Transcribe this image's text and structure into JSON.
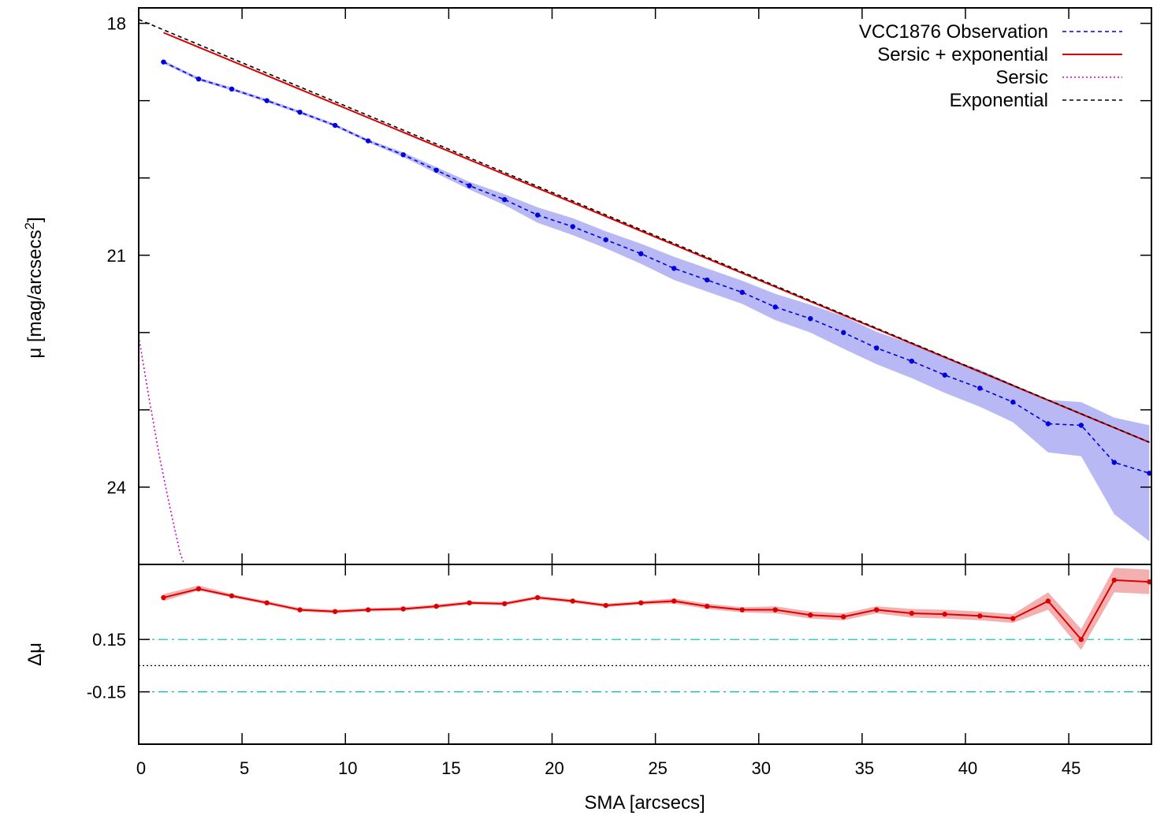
{
  "chart_data": [
    {
      "type": "line",
      "panel": "top",
      "xlim": [
        0,
        49
      ],
      "ylim": [
        25,
        17.8
      ],
      "y_inverted": true,
      "ylabel_main": "μ [mag/arcsecs",
      "ylabel_sup": "2",
      "ylabel_end": "]",
      "yticks_major": [
        18,
        21,
        24
      ],
      "yticks_major_labels": [
        "18",
        "21",
        "24"
      ],
      "yticks_minor": [
        19,
        20,
        22,
        23
      ],
      "legend_position": "top-right",
      "series": [
        {
          "name": "VCC1876 Observation",
          "color": "#0000dd",
          "style": "dashed-markers",
          "x": [
            1.2,
            2.9,
            4.5,
            6.2,
            7.8,
            9.5,
            11.1,
            12.8,
            14.4,
            16.0,
            17.7,
            19.3,
            21.0,
            22.6,
            24.3,
            25.9,
            27.5,
            29.2,
            30.8,
            32.5,
            34.1,
            35.7,
            37.4,
            39.0,
            40.7,
            42.3,
            44.0,
            45.6,
            47.2,
            48.9
          ],
          "y": [
            18.5,
            18.72,
            18.85,
            19.0,
            19.15,
            19.32,
            19.52,
            19.7,
            19.9,
            20.1,
            20.28,
            20.48,
            20.63,
            20.8,
            20.98,
            21.17,
            21.32,
            21.48,
            21.67,
            21.82,
            22.0,
            22.2,
            22.37,
            22.55,
            22.72,
            22.9,
            23.18,
            23.2,
            23.68,
            23.82
          ],
          "err_lo": [
            18.48,
            18.7,
            18.83,
            18.98,
            19.13,
            19.3,
            19.5,
            19.67,
            19.86,
            20.05,
            20.21,
            20.38,
            20.52,
            20.69,
            20.85,
            21.02,
            21.17,
            21.33,
            21.5,
            21.64,
            21.79,
            21.99,
            22.15,
            22.32,
            22.48,
            22.67,
            22.87,
            22.9,
            23.1,
            23.2
          ],
          "err_hi": [
            18.52,
            18.74,
            18.87,
            19.02,
            19.17,
            19.34,
            19.54,
            19.73,
            19.94,
            20.15,
            20.35,
            20.58,
            20.74,
            20.91,
            21.11,
            21.32,
            21.47,
            21.63,
            21.84,
            22.0,
            22.21,
            22.41,
            22.59,
            22.78,
            22.96,
            23.16,
            23.55,
            23.6,
            24.35,
            24.7
          ]
        },
        {
          "name": "Sersic + exponential",
          "color": "#dd0000",
          "style": "solid",
          "x": [
            1.2,
            48.9
          ],
          "y": [
            18.12,
            23.42
          ]
        },
        {
          "name": "Sersic",
          "color": "#cc00cc",
          "style": "dotted",
          "x": [
            0,
            0.5,
            1.0,
            1.5,
            2.0,
            2.2
          ],
          "y": [
            22.05,
            22.85,
            23.6,
            24.25,
            24.85,
            25.0
          ]
        },
        {
          "name": "Exponential",
          "color": "#000000",
          "style": "dashed",
          "x": [
            0,
            48.9
          ],
          "y": [
            17.95,
            23.42
          ]
        }
      ]
    },
    {
      "type": "line",
      "panel": "bottom",
      "xlim": [
        0,
        49
      ],
      "ylim": [
        -0.45,
        0.58
      ],
      "xlabel": "SMA [arcsecs]",
      "ylabel": "Δμ",
      "xticks": [
        0,
        5,
        10,
        15,
        20,
        25,
        30,
        35,
        40,
        45
      ],
      "xtick_labels": [
        "0",
        "5",
        "10",
        "15",
        "20",
        "25",
        "30",
        "35",
        "40",
        "45"
      ],
      "yticks": [
        0.15,
        -0.15
      ],
      "ytick_labels": [
        "0.15",
        "-0.15"
      ],
      "reference_lines": [
        {
          "y": 0.15,
          "color": "#00bbbb",
          "style": "dash-dot"
        },
        {
          "y": -0.15,
          "color": "#00bbbb",
          "style": "dash-dot"
        },
        {
          "y": 0.0,
          "color": "#000000",
          "style": "dotted"
        }
      ],
      "series": [
        {
          "color": "#dd0000",
          "style": "solid-markers",
          "x": [
            1.2,
            2.9,
            4.5,
            6.2,
            7.8,
            9.5,
            11.1,
            12.8,
            14.4,
            16.0,
            17.7,
            19.3,
            21.0,
            22.6,
            24.3,
            25.9,
            27.5,
            29.2,
            30.8,
            32.5,
            34.1,
            35.7,
            37.4,
            39.0,
            40.7,
            42.3,
            44.0,
            45.6,
            47.2,
            48.9
          ],
          "y": [
            0.39,
            0.44,
            0.4,
            0.36,
            0.32,
            0.31,
            0.32,
            0.325,
            0.34,
            0.36,
            0.355,
            0.39,
            0.37,
            0.345,
            0.36,
            0.37,
            0.34,
            0.32,
            0.32,
            0.29,
            0.28,
            0.32,
            0.3,
            0.295,
            0.285,
            0.27,
            0.37,
            0.15,
            0.49,
            0.48
          ],
          "err_lo": [
            0.37,
            0.43,
            0.39,
            0.35,
            0.31,
            0.3,
            0.31,
            0.315,
            0.33,
            0.35,
            0.345,
            0.38,
            0.36,
            0.335,
            0.35,
            0.355,
            0.325,
            0.305,
            0.3,
            0.27,
            0.26,
            0.3,
            0.275,
            0.27,
            0.26,
            0.245,
            0.32,
            0.09,
            0.42,
            0.41
          ],
          "err_hi": [
            0.41,
            0.46,
            0.41,
            0.37,
            0.33,
            0.32,
            0.33,
            0.335,
            0.35,
            0.37,
            0.365,
            0.4,
            0.38,
            0.355,
            0.37,
            0.385,
            0.355,
            0.335,
            0.34,
            0.31,
            0.3,
            0.34,
            0.325,
            0.32,
            0.31,
            0.295,
            0.42,
            0.21,
            0.56,
            0.55
          ]
        }
      ]
    }
  ]
}
